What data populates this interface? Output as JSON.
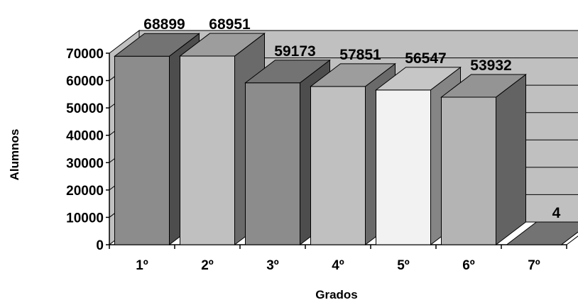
{
  "chart_data": {
    "type": "bar",
    "subtype": "3d-column",
    "categories": [
      "1º",
      "2º",
      "3º",
      "4º",
      "5º",
      "6º",
      "7º"
    ],
    "values": [
      68899,
      68951,
      59173,
      57851,
      56547,
      53932,
      4
    ],
    "data_labels": [
      "68899",
      "68951",
      "59173",
      "57851",
      "56547",
      "53932",
      "4"
    ],
    "xlabel": "Grados",
    "ylabel": "Alumnos",
    "ylim": [
      0,
      70000
    ],
    "yticks": [
      0,
      10000,
      20000,
      30000,
      40000,
      50000,
      60000,
      70000
    ],
    "ytick_labels": [
      "0",
      "10000",
      "20000",
      "30000",
      "40000",
      "50000",
      "60000",
      "70000"
    ],
    "grid": true,
    "legend": "none",
    "bar_colors": [
      "#8c8c8c",
      "#c0c0c0",
      "#8c8c8c",
      "#c0c0c0",
      "#f2f2f2",
      "#b4b4b4",
      "#8c8c8c"
    ],
    "wall_color": "#c0c0c0",
    "floor_color": "#ffffff"
  }
}
